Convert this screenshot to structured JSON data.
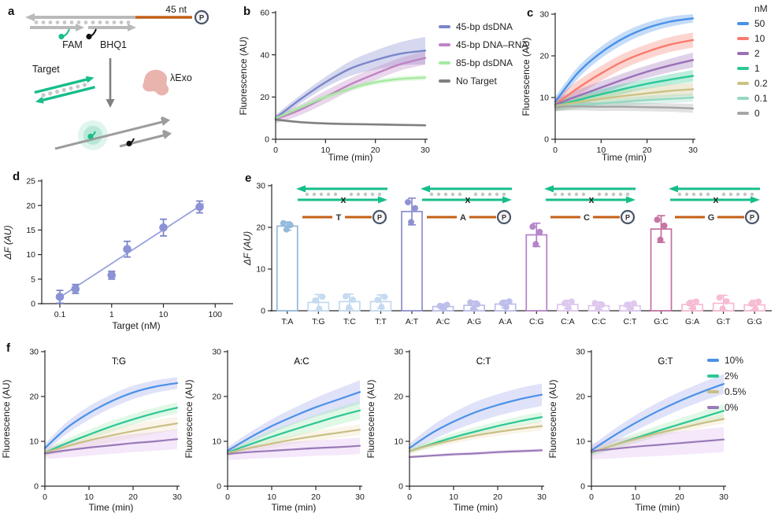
{
  "panels": {
    "a": {
      "label": "a",
      "nt_label": "45 nt",
      "p_label": "P",
      "fam": "FAM",
      "bhq1": "BHQ1",
      "target": "Target",
      "lexo": "λExo"
    },
    "b": {
      "label": "b"
    },
    "c": {
      "label": "c"
    },
    "d": {
      "label": "d"
    },
    "e": {
      "label": "e"
    },
    "f": {
      "label": "f"
    }
  },
  "chart_data": [
    {
      "id": "b",
      "type": "line",
      "xlabel": "Time (min)",
      "ylabel": "Fluorescence (AU)",
      "xlim": [
        0,
        30
      ],
      "ylim": [
        0,
        60
      ],
      "xticks": [
        0,
        10,
        20,
        30
      ],
      "yticks": [
        0,
        20,
        40,
        60
      ],
      "x": [
        0,
        5,
        10,
        15,
        20,
        25,
        30
      ],
      "series": [
        {
          "name": "45-bp dsDNA",
          "color": "#7b86c9",
          "values": [
            10,
            19,
            27,
            33.5,
            37.5,
            40.5,
            42
          ],
          "band": [
            1.5,
            2,
            2.5,
            3.5,
            4.5,
            5.5,
            6.5
          ]
        },
        {
          "name": "45-bp DNA–RNA",
          "color": "#bf84c4",
          "values": [
            9.5,
            14,
            20,
            26,
            31,
            35.5,
            38.5
          ],
          "band": [
            2,
            2.5,
            3,
            3,
            3,
            3,
            3.2
          ]
        },
        {
          "name": "85-bp dsDNA",
          "color": "#a6e9a0",
          "values": [
            10,
            15,
            20,
            24,
            27,
            28.6,
            29.2
          ],
          "band": [
            1,
            1.2,
            1.2,
            1.2,
            1.2,
            1.2,
            1.2
          ]
        },
        {
          "name": "No Target",
          "color": "#7f7f7f",
          "values": [
            9.3,
            8.1,
            7.5,
            7.2,
            7,
            6.8,
            6.6
          ],
          "band": [
            0.6,
            0.6,
            0.6,
            0.6,
            0.6,
            0.6,
            0.6
          ]
        }
      ]
    },
    {
      "id": "c",
      "type": "line",
      "xlabel": "Time (min)",
      "ylabel": "Fluorescence (AU)",
      "legend_title": "nM",
      "xlim": [
        0,
        30
      ],
      "ylim": [
        0,
        30
      ],
      "xticks": [
        0,
        10,
        20,
        30
      ],
      "yticks": [
        0,
        10,
        20,
        30
      ],
      "x": [
        0,
        5,
        10,
        15,
        20,
        25,
        30
      ],
      "series": [
        {
          "name": "50",
          "color": "#4a91e8",
          "values": [
            9,
            16,
            20.8,
            24.3,
            26.7,
            28.2,
            29
          ],
          "band": [
            1.2,
            1.4,
            1.4,
            1.4,
            1.3,
            1.2,
            1
          ]
        },
        {
          "name": "10",
          "color": "#f87b6d",
          "values": [
            8.3,
            12.3,
            15.8,
            18.8,
            21,
            22.7,
            23.8
          ],
          "band": [
            1.5,
            1.8,
            1.8,
            1.8,
            1.8,
            1.8,
            1.8
          ]
        },
        {
          "name": "2",
          "color": "#9b6fb8",
          "values": [
            8.3,
            10.4,
            12.4,
            14.4,
            16.2,
            17.7,
            19
          ],
          "band": [
            1.3,
            1.5,
            1.5,
            1.5,
            1.5,
            1.6,
            1.8
          ]
        },
        {
          "name": "1",
          "color": "#2cc795",
          "values": [
            8,
            9.4,
            10.8,
            12.1,
            13.3,
            14.3,
            15.2
          ],
          "band": [
            1.2,
            1.2,
            1.2,
            1.2,
            1.2,
            1.3,
            1.4
          ]
        },
        {
          "name": "0.2",
          "color": "#ccc285",
          "values": [
            8,
            8.9,
            9.7,
            10.4,
            11,
            11.6,
            12
          ],
          "band": [
            1.4,
            1.4,
            1.4,
            1.4,
            1.4,
            1.5,
            1.6
          ]
        },
        {
          "name": "0.1",
          "color": "#93d8c0",
          "values": [
            7.8,
            8.2,
            8.6,
            9,
            9.4,
            9.7,
            10
          ],
          "band": [
            1,
            1,
            1,
            1,
            1,
            1,
            1
          ]
        },
        {
          "name": "0",
          "color": "#a6a6a6",
          "values": [
            7.8,
            7.9,
            7.8,
            7.8,
            7.7,
            7.6,
            7.4
          ],
          "band": [
            1,
            1,
            1,
            1,
            1,
            1,
            1.1
          ]
        }
      ]
    },
    {
      "id": "d",
      "type": "scatter",
      "xlabel": "Target (nM)",
      "ylabel": "ΔF (AU)",
      "xscale": "log",
      "xlim_log": [
        -1.35,
        2.3
      ],
      "ylim": [
        0,
        25
      ],
      "xticks": [
        0.1,
        1,
        10,
        100
      ],
      "yticks": [
        0,
        5,
        10,
        15,
        20,
        25
      ],
      "points": {
        "x": [
          0.1,
          0.2,
          1,
          2,
          10,
          50
        ],
        "y": [
          1.4,
          3.0,
          5.8,
          11.1,
          15.5,
          19.7
        ],
        "err": [
          1.3,
          0.9,
          0.8,
          1.6,
          1.7,
          1.2
        ]
      },
      "fit": {
        "x": [
          0.09,
          60
        ],
        "y": [
          1.0,
          20.4
        ]
      },
      "marker_color": "#8b93d6",
      "line_color": "#98a0dc",
      "err_color": "#7b86c9"
    },
    {
      "id": "e",
      "type": "bar",
      "ylabel": "ΔF (AU)",
      "ylim": [
        0,
        30
      ],
      "yticks": [
        0,
        10,
        20,
        30
      ],
      "categories": [
        "T:A",
        "T:G",
        "T:C",
        "T:T",
        "A:T",
        "A:C",
        "A:G",
        "A:A",
        "C:G",
        "C:A",
        "C:C",
        "C:T",
        "G:C",
        "G:A",
        "G:T",
        "G:G"
      ],
      "values": [
        20.3,
        2.0,
        2.2,
        2.2,
        23.8,
        1.0,
        1.3,
        1.6,
        18.2,
        1.5,
        1.2,
        1.2,
        19.6,
        1.5,
        1.8,
        1.4
      ],
      "errors": [
        1.0,
        1.9,
        1.8,
        1.6,
        3.2,
        0.6,
        1.0,
        0.9,
        2.8,
        1.0,
        0.9,
        0.8,
        3.2,
        1.0,
        1.9,
        1.1
      ],
      "colors": [
        "#92b7dc",
        "#c3d9f0",
        "#c3d9f0",
        "#c3d9f0",
        "#8b8dce",
        "#babdea",
        "#babdea",
        "#babdea",
        "#b27fc8",
        "#ddc6ee",
        "#ddc6ee",
        "#ddc6ee",
        "#c26f9e",
        "#f6b9d2",
        "#f6b9d2",
        "#f6b9d2"
      ],
      "insets": [
        {
          "letter": "T"
        },
        {
          "letter": "A"
        },
        {
          "letter": "C"
        },
        {
          "letter": "G"
        }
      ],
      "x_label": "X",
      "p_label": "P"
    },
    {
      "id": "f1",
      "type": "line",
      "title": "T:G",
      "xlabel": "Time (min)",
      "ylabel": "Fluorescence (AU)",
      "xlim": [
        0,
        30
      ],
      "ylim": [
        0,
        30
      ],
      "xticks": [
        0,
        10,
        20,
        30
      ],
      "yticks": [
        0,
        10,
        20,
        30
      ],
      "x": [
        0,
        5,
        10,
        15,
        20,
        25,
        30
      ],
      "series": [
        {
          "name": "10%",
          "color": "#4a91e8",
          "band_color": "#9aa5e8",
          "values": [
            8.5,
            13,
            16.3,
            18.9,
            20.9,
            22.2,
            23
          ],
          "band": [
            1,
            1.3,
            1.5,
            1.5,
            1.5,
            1.4,
            1.3
          ]
        },
        {
          "name": "2%",
          "color": "#2cc795",
          "band_color": "#a0eab2",
          "values": [
            7.5,
            9.6,
            11.5,
            13.3,
            14.9,
            16.3,
            17.5
          ],
          "band": [
            0.8,
            1,
            1.1,
            1.2,
            1.2,
            1.2,
            1.2
          ]
        },
        {
          "name": "0.5%",
          "color": "#c9bf84",
          "band_color": "#f0dcba",
          "values": [
            7.5,
            8.9,
            10.2,
            11.3,
            12.3,
            13.2,
            14
          ],
          "band": [
            0.9,
            1.2,
            1.4,
            1.5,
            1.5,
            1.5,
            1.5
          ]
        },
        {
          "name": "0%",
          "color": "#9a7ab8",
          "band_color": "#dcb8ee",
          "values": [
            7.3,
            8,
            8.6,
            9.1,
            9.6,
            10,
            10.5
          ],
          "band": [
            1.3,
            1.6,
            1.8,
            1.9,
            2,
            2.1,
            2.2
          ]
        }
      ]
    },
    {
      "id": "f2",
      "type": "line",
      "title": "A:C",
      "xlabel": "Time (min)",
      "ylabel": "Fluorescence (AU)",
      "xlim": [
        0,
        30
      ],
      "ylim": [
        0,
        30
      ],
      "xticks": [
        0,
        10,
        20,
        30
      ],
      "yticks": [
        0,
        10,
        20,
        30
      ],
      "x": [
        0,
        5,
        10,
        15,
        20,
        25,
        30
      ],
      "series": [
        {
          "name": "10%",
          "color": "#4a91e8",
          "band_color": "#9aa5e8",
          "values": [
            7.9,
            10.8,
            13.4,
            15.6,
            17.6,
            19.3,
            21
          ],
          "band": [
            0.8,
            1.2,
            1.5,
            1.8,
            2.1,
            2.4,
            2.6
          ]
        },
        {
          "name": "2%",
          "color": "#2cc795",
          "band_color": "#a0eab2",
          "values": [
            7.5,
            9.3,
            11,
            12.6,
            14.1,
            15.6,
            16.9
          ],
          "band": [
            0.8,
            1.1,
            1.4,
            1.6,
            1.8,
            1.9,
            2
          ]
        },
        {
          "name": "0.5%",
          "color": "#c9bf84",
          "band_color": "#f0dcba",
          "values": [
            7.4,
            8.5,
            9.5,
            10.4,
            11.2,
            11.9,
            12.6
          ],
          "band": [
            0.8,
            0.9,
            1,
            1,
            1.1,
            1.1,
            1.2
          ]
        },
        {
          "name": "0%",
          "color": "#9a7ab8",
          "band_color": "#dcb8ee",
          "values": [
            7.2,
            7.6,
            7.9,
            8.2,
            8.5,
            8.7,
            9
          ],
          "band": [
            1.4,
            1.5,
            1.6,
            1.7,
            1.7,
            1.8,
            1.8
          ]
        }
      ]
    },
    {
      "id": "f3",
      "type": "line",
      "title": "C:T",
      "xlabel": "Time (min)",
      "ylabel": "Fluorescence (AU)",
      "xlim": [
        0,
        30
      ],
      "ylim": [
        0,
        30
      ],
      "xticks": [
        0,
        10,
        20,
        30
      ],
      "yticks": [
        0,
        10,
        20,
        30
      ],
      "x": [
        0,
        5,
        10,
        15,
        20,
        25,
        30
      ],
      "series": [
        {
          "name": "10%",
          "color": "#4a91e8",
          "band_color": "#9aa5e8",
          "values": [
            8.5,
            11.8,
            14.4,
            16.5,
            18.1,
            19.4,
            20.4
          ],
          "band": [
            1,
            1.6,
            2,
            2.3,
            2.4,
            2.5,
            2.5
          ]
        },
        {
          "name": "2%",
          "color": "#2cc795",
          "band_color": "#a0eab2",
          "values": [
            7.8,
            9.4,
            10.9,
            12.2,
            13.4,
            14.5,
            15.4
          ],
          "band": [
            0.6,
            0.8,
            0.9,
            1,
            1,
            1.1,
            1.1
          ]
        },
        {
          "name": "0.5%",
          "color": "#c9bf84",
          "band_color": "#f0dcba",
          "values": [
            7.8,
            9.2,
            10.3,
            11.3,
            12.1,
            12.8,
            13.4
          ],
          "band": [
            0.6,
            0.7,
            0.8,
            0.8,
            0.9,
            0.9,
            1
          ]
        },
        {
          "name": "0%",
          "color": "#9a7ab8",
          "band_color": "#dcb8ee",
          "values": [
            6.5,
            6.8,
            7.1,
            7.3,
            7.6,
            7.8,
            8
          ],
          "band": [
            0.3,
            0.3,
            0.4,
            0.4,
            0.4,
            0.4,
            0.4
          ]
        }
      ]
    },
    {
      "id": "f4",
      "type": "line",
      "title": "G:T",
      "xlabel": "Time (min)",
      "ylabel": "Fluorescence (AU)",
      "xlim": [
        0,
        30
      ],
      "ylim": [
        0,
        30
      ],
      "xticks": [
        0,
        10,
        20,
        30
      ],
      "yticks": [
        0,
        10,
        20,
        30
      ],
      "x": [
        0,
        5,
        10,
        15,
        20,
        25,
        30
      ],
      "series": [
        {
          "name": "10%",
          "color": "#4a91e8",
          "band_color": "#9aa5e8",
          "values": [
            8,
            11.2,
            14.1,
            16.7,
            19,
            21,
            22.8
          ],
          "band": [
            1,
            1.4,
            1.7,
            1.9,
            2,
            2.1,
            2.2
          ]
        },
        {
          "name": "2%",
          "color": "#2cc795",
          "band_color": "#a0eab2",
          "values": [
            7.5,
            9.1,
            10.7,
            12.3,
            13.8,
            15.3,
            16.8
          ],
          "band": [
            0.8,
            1,
            1.1,
            1.2,
            1.3,
            1.4,
            1.5
          ]
        },
        {
          "name": "0.5%",
          "color": "#c9bf84",
          "band_color": "#f0dcba",
          "values": [
            7.6,
            9.1,
            10.5,
            11.8,
            12.9,
            14,
            15
          ],
          "band": [
            0.7,
            0.8,
            0.8,
            0.9,
            0.9,
            1,
            1
          ]
        },
        {
          "name": "0%",
          "color": "#9a7ab8",
          "band_color": "#dcb8ee",
          "values": [
            7.8,
            8.3,
            8.8,
            9.2,
            9.6,
            10,
            10.4
          ],
          "band": [
            1.8,
            2.1,
            2.3,
            2.5,
            2.6,
            2.7,
            2.8
          ]
        }
      ]
    }
  ]
}
